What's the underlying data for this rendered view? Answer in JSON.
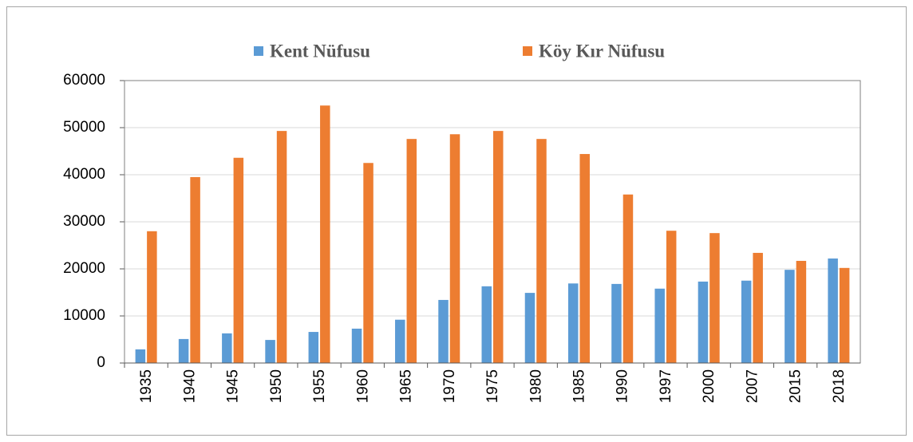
{
  "chart_data": {
    "type": "bar",
    "categories": [
      "1935",
      "1940",
      "1945",
      "1950",
      "1955",
      "1960",
      "1965",
      "1970",
      "1975",
      "1980",
      "1985",
      "1990",
      "1997",
      "2000",
      "2007",
      "2015",
      "2018"
    ],
    "series": [
      {
        "name": "Kent Nüfusu",
        "color": "#5b9bd5",
        "values": [
          2900,
          5100,
          6300,
          4900,
          6600,
          7300,
          9200,
          13400,
          16300,
          14900,
          16900,
          16800,
          15800,
          17300,
          17500,
          19800,
          22200
        ]
      },
      {
        "name": "Köy Kır Nüfusu",
        "color": "#ed7d31",
        "values": [
          28000,
          39500,
          43600,
          49300,
          54700,
          42500,
          47600,
          48600,
          49300,
          47600,
          44400,
          35800,
          28100,
          27600,
          23400,
          21700,
          20200
        ]
      }
    ],
    "ylim": [
      0,
      60000
    ],
    "yticks": [
      0,
      10000,
      20000,
      30000,
      40000,
      50000,
      60000
    ],
    "grid": true
  }
}
